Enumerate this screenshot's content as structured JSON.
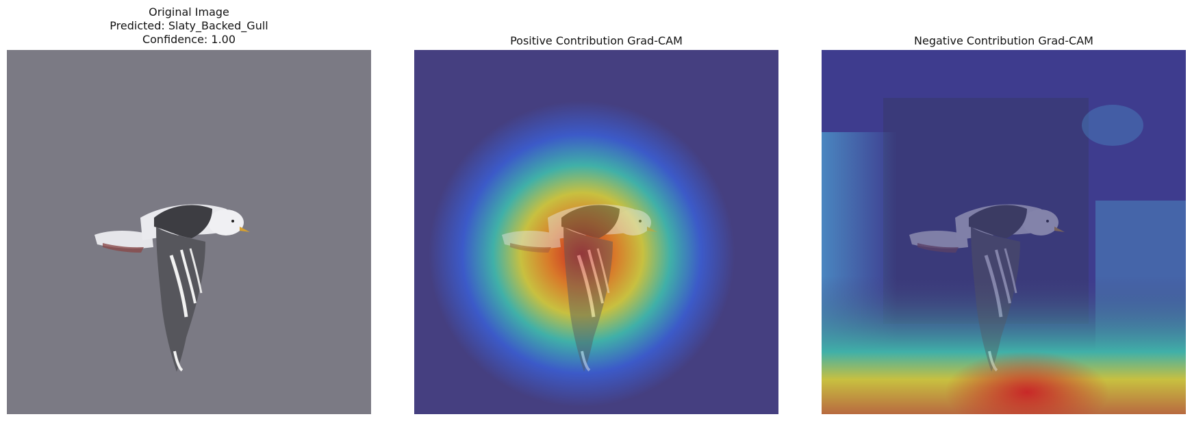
{
  "figure": {
    "panels": [
      {
        "id": "original",
        "title_lines": [
          "Original Image",
          "Predicted: Slaty_Backed_Gull",
          "Confidence: 1.00"
        ]
      },
      {
        "id": "positive",
        "title_lines": [
          "Positive Contribution Grad-CAM"
        ]
      },
      {
        "id": "negative",
        "title_lines": [
          "Negative Contribution Grad-CAM"
        ]
      }
    ]
  },
  "colors": {
    "background_gray": "#7a7a84",
    "heatmap_low": "#3c3c8c",
    "heatmap_high": "#c82828"
  }
}
